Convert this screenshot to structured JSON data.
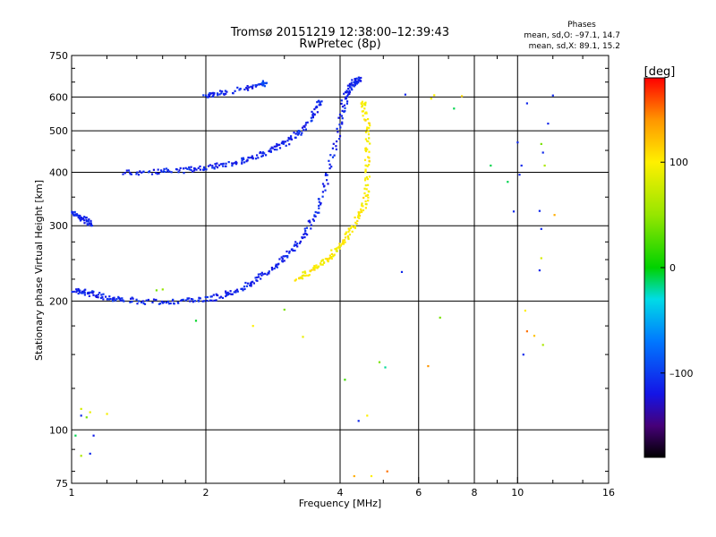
{
  "chart_data": {
    "type": "scatter",
    "title": "Tromsø 20151219 12:38:00–12:39:43",
    "subtitle": "RwPretec (8p)",
    "xlabel": "Frequency [MHz]",
    "ylabel": "Stationary phase Virtual Height [km]",
    "x_scale": "log",
    "y_scale": "log",
    "xlim": [
      1,
      16
    ],
    "ylim": [
      75,
      750
    ],
    "x_ticks": [
      1,
      2,
      4,
      6,
      8,
      10,
      16
    ],
    "x_tick_labels": [
      "1",
      "2",
      "4",
      "6",
      "8",
      "10",
      "16"
    ],
    "y_ticks": [
      75,
      100,
      200,
      300,
      400,
      500,
      600,
      750
    ],
    "y_tick_labels": [
      "75",
      "100",
      "200",
      "300",
      "400",
      "500",
      "600",
      "750"
    ],
    "grid": true,
    "stats": {
      "heading": "Phases",
      "line_o": "mean, sd,O: –97.1, 14.7",
      "line_x": "mean, sd,X:  89.1, 15.2"
    },
    "colorbar": {
      "label": "[deg]",
      "range": [
        -180,
        180
      ],
      "ticks": [
        100,
        0,
        -100
      ],
      "tick_labels": [
        "100",
        "0",
        "–100"
      ]
    },
    "series": [
      {
        "x": [
          1.0,
          1.03,
          1.06,
          1.09,
          1.12,
          1.16,
          1.2,
          1.25,
          1.3,
          1.4,
          1.5,
          1.6,
          1.7,
          1.8,
          1.9,
          2.0,
          2.1,
          2.2,
          2.3,
          2.4,
          2.5,
          2.6,
          2.7,
          2.8,
          2.9,
          3.0,
          3.1,
          3.2,
          3.3,
          3.4,
          3.5,
          3.6,
          3.7,
          3.8,
          3.9,
          4.0,
          4.05,
          4.1,
          4.15,
          4.2,
          4.25,
          4.3,
          4.35,
          4.4
        ],
        "y": [
          212,
          211,
          210,
          209,
          208,
          206,
          204,
          203,
          202,
          200,
          199,
          199,
          200,
          200,
          201,
          202,
          204,
          207,
          210,
          214,
          219,
          225,
          231,
          238,
          245,
          253,
          262,
          272,
          283,
          297,
          315,
          340,
          370,
          410,
          460,
          520,
          555,
          590,
          610,
          630,
          640,
          650,
          655,
          658
        ],
        "phase": [
          -115,
          -115,
          -110,
          -110,
          -115,
          -110,
          -110,
          -110,
          -110,
          -110,
          -110,
          -115,
          -110,
          -110,
          -110,
          -110,
          -115,
          -110,
          -115,
          -110,
          -115,
          -110,
          -115,
          -110,
          -115,
          -110,
          -110,
          -115,
          -110,
          -115,
          -110,
          -110,
          -115,
          -110,
          -115,
          -110,
          -110,
          -115,
          -110,
          -115,
          -110,
          -110,
          -115,
          -110
        ]
      },
      {
        "x": [
          3.2,
          3.3,
          3.4,
          3.5,
          3.6,
          3.7,
          3.8,
          3.9,
          4.0,
          4.1,
          4.2,
          4.3,
          4.4,
          4.5,
          4.55,
          4.6,
          4.6,
          4.6,
          4.6,
          4.6,
          4.6,
          4.55,
          4.5
        ],
        "y": [
          226,
          229,
          233,
          238,
          243,
          249,
          255,
          262,
          270,
          280,
          290,
          300,
          315,
          330,
          345,
          360,
          390,
          420,
          450,
          480,
          520,
          550,
          580
        ],
        "phase": [
          100,
          95,
          105,
          100,
          95,
          105,
          100,
          95,
          105,
          100,
          95,
          105,
          100,
          95,
          105,
          100,
          95,
          105,
          100,
          95,
          105,
          100,
          95
        ]
      },
      {
        "x": [
          1.3,
          1.4,
          1.5,
          1.6,
          1.7,
          1.8,
          1.9,
          2.0,
          2.1,
          2.2,
          2.3,
          2.4,
          2.5,
          2.6,
          2.7,
          2.8,
          2.9,
          3.0,
          3.1,
          3.2,
          3.3,
          3.4,
          3.5,
          3.6
        ],
        "y": [
          400,
          400,
          401,
          402,
          403,
          405,
          408,
          410,
          413,
          417,
          421,
          426,
          431,
          437,
          443,
          450,
          458,
          468,
          478,
          490,
          505,
          525,
          550,
          580
        ],
        "phase": [
          -115,
          -110,
          -115,
          -110,
          -115,
          -110,
          -115,
          -110,
          -115,
          -110,
          -115,
          -110,
          -115,
          -110,
          -115,
          -110,
          -115,
          -110,
          -115,
          -110,
          -115,
          -110,
          -115,
          -110
        ]
      },
      {
        "x": [
          1.0,
          1.02,
          1.04,
          1.06,
          1.08,
          1.1
        ],
        "y": [
          322,
          318,
          315,
          312,
          308,
          304
        ],
        "phase": [
          -110,
          -115,
          -110,
          -115,
          -110,
          -115
        ]
      },
      {
        "x": [
          2.0,
          2.05,
          2.1,
          2.2,
          2.4,
          2.5,
          2.6,
          2.7
        ],
        "y": [
          605,
          608,
          612,
          616,
          625,
          630,
          638,
          645
        ],
        "phase": [
          -110,
          -115,
          -110,
          -115,
          -110,
          -115,
          -110,
          -90
        ]
      }
    ],
    "annotations": {
      "scatter_x": [
        1.05,
        1.1,
        1.05,
        1.02,
        1.12,
        1.2,
        1.1,
        1.05,
        1.08,
        1.55,
        1.6,
        1.9,
        2.55,
        3.0,
        3.3,
        4.1,
        4.4,
        4.6,
        4.9,
        5.05,
        5.5,
        5.6,
        6.5,
        6.4,
        6.7,
        6.3,
        7.2,
        7.5,
        8.7,
        9.5,
        9.8,
        10.0,
        10.2,
        10.1,
        10.5,
        11.3,
        11.4,
        11.2,
        11.3,
        11.5,
        11.7,
        12.0,
        12.1,
        11.3,
        11.2,
        10.4,
        10.5,
        10.3,
        10.9,
        11.4,
        4.3,
        4.7,
        5.1
      ],
      "scatter_y": [
        112,
        110,
        108,
        97,
        97,
        109,
        88,
        87,
        107,
        212,
        213,
        180,
        175,
        191,
        165,
        131,
        105,
        108,
        144,
        140,
        234,
        608,
        606,
        595,
        183,
        141,
        564,
        603,
        415,
        380,
        324,
        470,
        415,
        395,
        580,
        466,
        445,
        325,
        295,
        415,
        520,
        605,
        318,
        252,
        236,
        190,
        170,
        150,
        166,
        158,
        78,
        78,
        80
      ],
      "scatter_phase": [
        80,
        90,
        -110,
        -10,
        -115,
        95,
        -110,
        60,
        40,
        40,
        50,
        -5,
        100,
        40,
        90,
        20,
        -110,
        100,
        40,
        -20,
        -110,
        -110,
        100,
        100,
        40,
        140,
        -10,
        110,
        -10,
        -10,
        -110,
        -110,
        -110,
        -110,
        -110,
        40,
        -110,
        -110,
        -110,
        60,
        -110,
        -110,
        130,
        80,
        -110,
        100,
        150,
        -110,
        120,
        60,
        130,
        100,
        150
      ]
    }
  },
  "page": {
    "background": "#ffffff"
  },
  "colors": {
    "frame": "#000000",
    "grid": "#000000",
    "text": "#000000"
  }
}
